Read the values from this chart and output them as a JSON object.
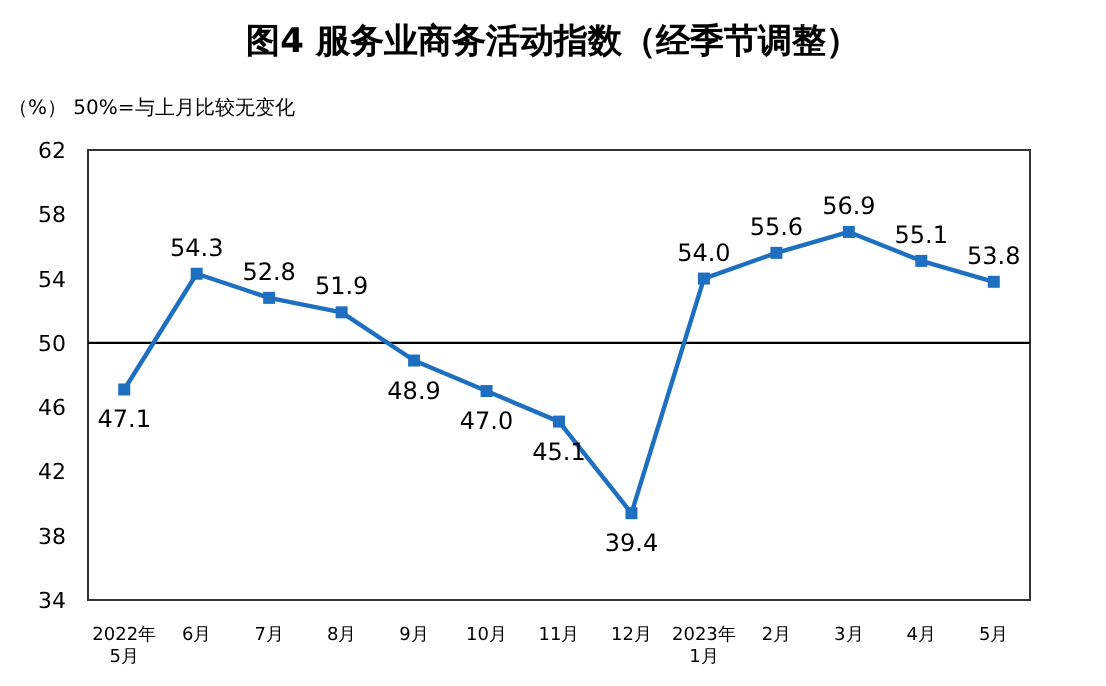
{
  "chart_data": {
    "type": "line",
    "title": "图4  服务业商务活动指数（经季节调整）",
    "subtitle": "（%）  50%=与上月比较无变化",
    "categories": [
      "2022年\n5月",
      "6月",
      "7月",
      "8月",
      "9月",
      "10月",
      "11月",
      "12月",
      "2023年\n1月",
      "2月",
      "3月",
      "4月",
      "5月"
    ],
    "series": [
      {
        "color": "#1f6fc0",
        "values": [
          47.1,
          54.3,
          52.8,
          51.9,
          48.9,
          47.0,
          45.1,
          39.4,
          54.0,
          55.6,
          56.9,
          55.1,
          53.8
        ],
        "value_labels": [
          "47.1",
          "54.3",
          "52.8",
          "51.9",
          "48.9",
          "47.0",
          "45.1",
          "39.4",
          "54.0",
          "55.6",
          "56.9",
          "55.1",
          "53.8"
        ]
      }
    ],
    "ylim": [
      34,
      62
    ],
    "yticks": [
      34,
      38,
      42,
      46,
      50,
      54,
      58,
      62
    ],
    "ref_lines": [
      {
        "axis": "y",
        "value": 50,
        "color": "#000000"
      }
    ],
    "marker": "square",
    "grid": false
  }
}
